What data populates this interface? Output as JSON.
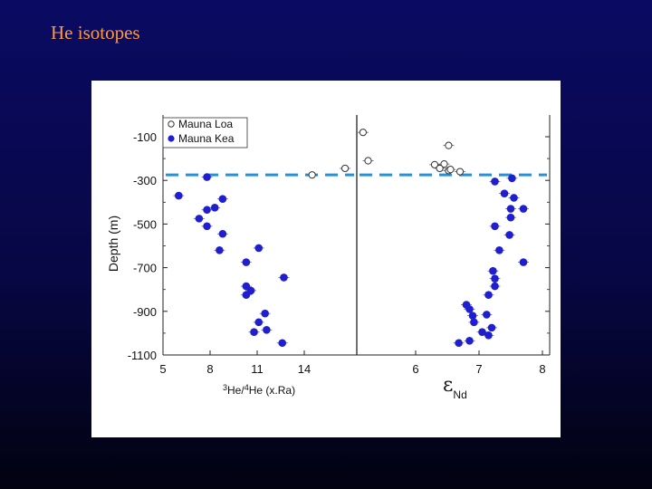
{
  "slide": {
    "title": "He isotopes"
  },
  "chart_data": [
    {
      "type": "scatter",
      "panel": "left",
      "title": "",
      "xlabel": "³He/⁴He (xRa)",
      "xlabel_parts": {
        "sup1": "3",
        "base1": "He/",
        "sup2": "4",
        "base2": "He (x.Ra)"
      },
      "ylabel": "Depth (m)",
      "xlim": [
        5,
        17
      ],
      "ylim": [
        -1100,
        0
      ],
      "x_ticks": [
        5,
        8,
        11,
        14
      ],
      "x_tick_labels": [
        "5",
        "8",
        "11",
        "14"
      ],
      "y_ticks": [
        -100,
        -300,
        -500,
        -700,
        -900,
        -1100
      ],
      "y_tick_labels": [
        "-100",
        "-300",
        "-500",
        "-700",
        "-900",
        "-1100"
      ],
      "reference_line": {
        "y": -275,
        "style": "dashed",
        "color": "#2b8fd6"
      },
      "legend": {
        "placement": "top-left",
        "entries": [
          {
            "label": "Mauna Loa",
            "marker": "open-circle"
          },
          {
            "label": "Mauna Kea",
            "marker": "filled-circle"
          }
        ]
      },
      "series": [
        {
          "name": "Mauna Loa",
          "marker": "open",
          "points": [
            [
              14.5,
              -275
            ],
            [
              16.6,
              -245
            ]
          ]
        },
        {
          "name": "Mauna Kea",
          "marker": "filled",
          "color": "#1f1fd0",
          "points": [
            [
              7.8,
              -285
            ],
            [
              6.0,
              -370
            ],
            [
              8.8,
              -385
            ],
            [
              8.3,
              -425
            ],
            [
              7.8,
              -435
            ],
            [
              7.3,
              -475
            ],
            [
              7.8,
              -510
            ],
            [
              8.8,
              -545
            ],
            [
              8.6,
              -620
            ],
            [
              11.1,
              -610
            ],
            [
              10.3,
              -675
            ],
            [
              12.7,
              -745
            ],
            [
              10.3,
              -785
            ],
            [
              10.6,
              -805
            ],
            [
              10.3,
              -825
            ],
            [
              11.5,
              -910
            ],
            [
              11.1,
              -950
            ],
            [
              11.6,
              -985
            ],
            [
              10.8,
              -995
            ],
            [
              12.6,
              -1045
            ]
          ]
        }
      ]
    },
    {
      "type": "scatter",
      "panel": "right",
      "title": "",
      "xlabel": "εNd",
      "xlabel_parts": {
        "base": "ε",
        "sub": "Nd"
      },
      "xlim": [
        4.9,
        8.0
      ],
      "ylim": [
        -1100,
        0
      ],
      "x_ticks": [
        6,
        7,
        8
      ],
      "x_tick_labels": [
        "6",
        "7",
        "8"
      ],
      "reference_line": {
        "y": -275,
        "style": "dashed",
        "color": "#2b8fd6"
      },
      "series": [
        {
          "name": "Mauna Loa",
          "marker": "open",
          "points": [
            [
              5.17,
              -80
            ],
            [
              6.52,
              -140
            ],
            [
              5.25,
              -210
            ],
            [
              6.3,
              -228
            ],
            [
              6.45,
              -225
            ],
            [
              6.38,
              -245
            ],
            [
              6.52,
              -255
            ],
            [
              6.55,
              -250
            ],
            [
              6.7,
              -260
            ]
          ]
        },
        {
          "name": "Mauna Kea",
          "marker": "filled",
          "color": "#1f1fd0",
          "points": [
            [
              7.52,
              -290
            ],
            [
              7.25,
              -305
            ],
            [
              7.55,
              -380
            ],
            [
              7.4,
              -360
            ],
            [
              7.5,
              -430
            ],
            [
              7.7,
              -430
            ],
            [
              7.5,
              -470
            ],
            [
              7.25,
              -510
            ],
            [
              7.48,
              -550
            ],
            [
              7.32,
              -620
            ],
            [
              7.7,
              -675
            ],
            [
              7.22,
              -715
            ],
            [
              7.25,
              -750
            ],
            [
              7.25,
              -785
            ],
            [
              7.15,
              -825
            ],
            [
              6.8,
              -870
            ],
            [
              6.85,
              -890
            ],
            [
              7.12,
              -915
            ],
            [
              6.9,
              -920
            ],
            [
              6.92,
              -950
            ],
            [
              7.2,
              -975
            ],
            [
              7.05,
              -995
            ],
            [
              7.15,
              -1010
            ],
            [
              6.85,
              -1035
            ],
            [
              6.68,
              -1045
            ]
          ]
        }
      ]
    }
  ]
}
